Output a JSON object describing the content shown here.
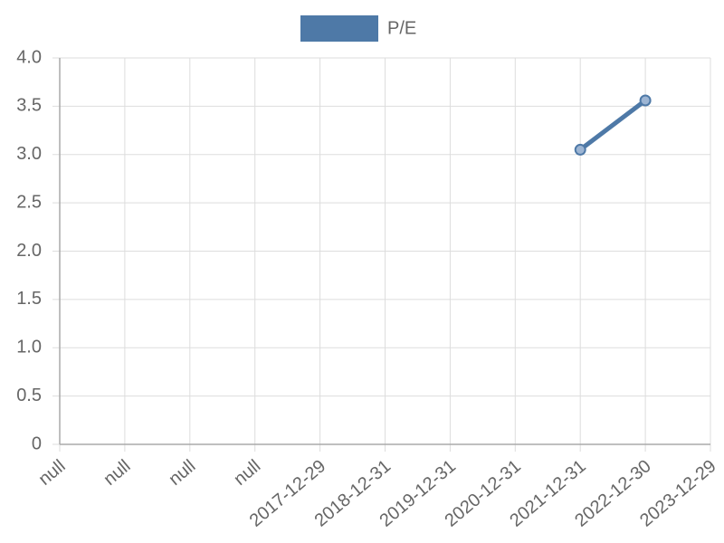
{
  "chart_data": {
    "type": "line",
    "categories": [
      "null",
      "null",
      "null",
      "null",
      "2017-12-29",
      "2018-12-31",
      "2019-12-31",
      "2020-12-31",
      "2021-12-31",
      "2022-12-30",
      "2023-12-29"
    ],
    "series": [
      {
        "name": "P/E",
        "color": "#4e79a7",
        "values": [
          null,
          null,
          null,
          null,
          null,
          null,
          null,
          null,
          3.05,
          3.56,
          null
        ]
      }
    ],
    "ylim": [
      0,
      4
    ],
    "yticks": [
      0,
      0.5,
      {
        "value": 1,
        "label": "1.0"
      },
      1.5,
      {
        "value": 2,
        "label": "2.0"
      },
      2.5,
      {
        "value": 3,
        "label": "3.0"
      },
      3.5,
      {
        "value": 4,
        "label": "4.0"
      }
    ],
    "grid": true,
    "legend": "top"
  }
}
